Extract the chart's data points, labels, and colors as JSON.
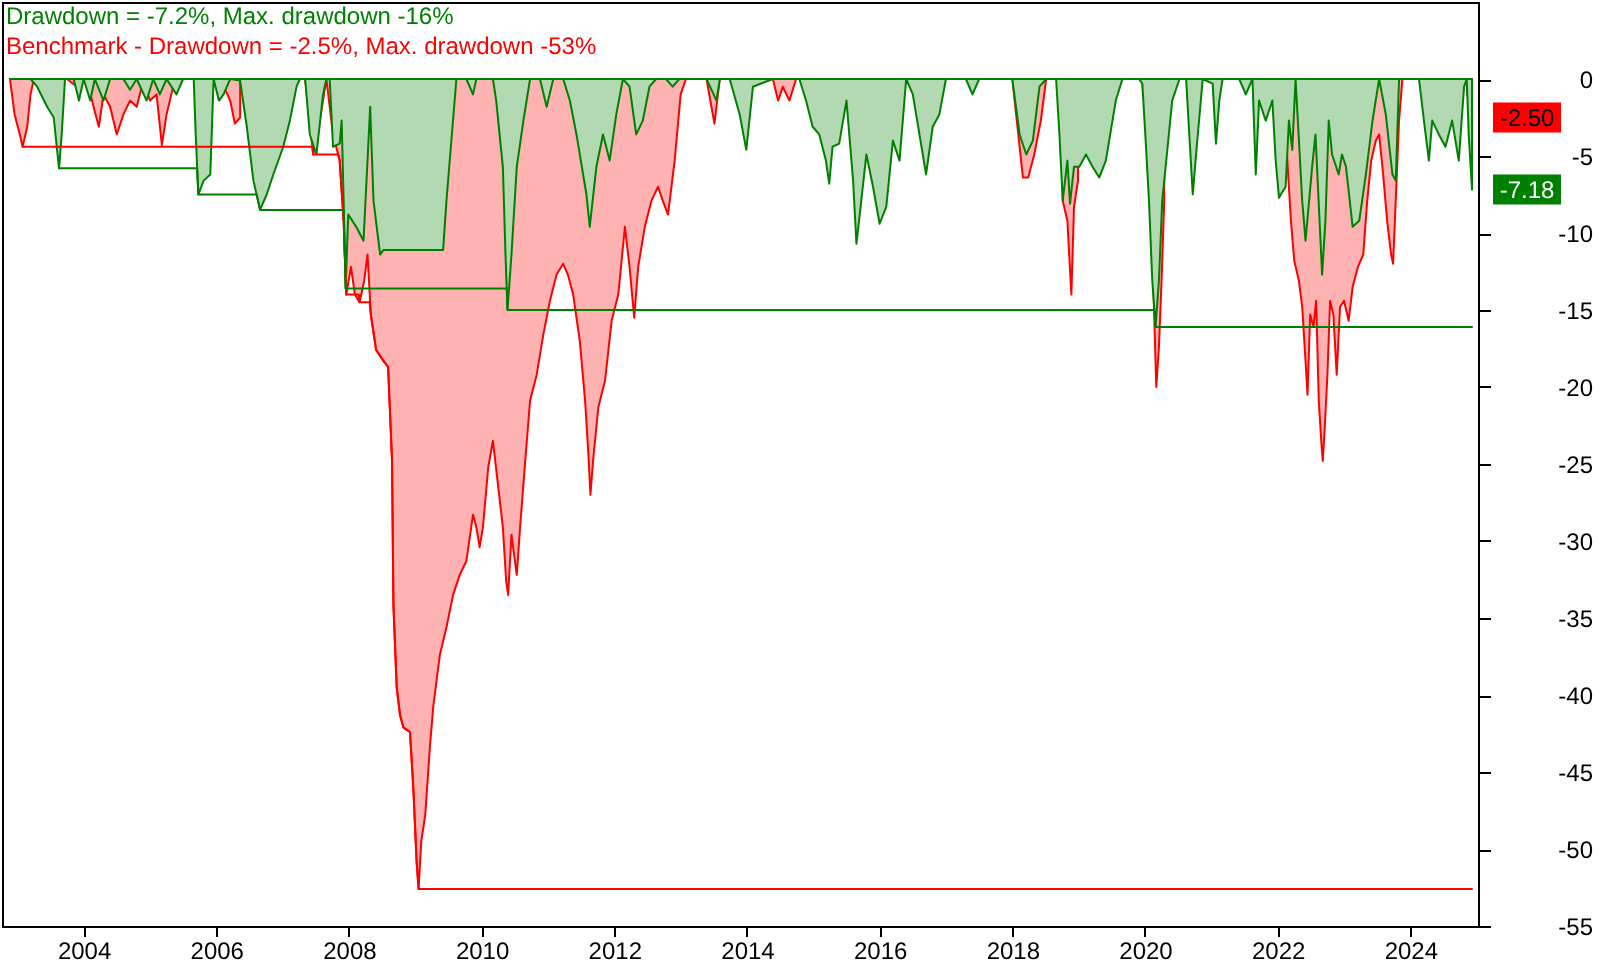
{
  "chart_data": {
    "type": "area",
    "legend": "top left",
    "xlim": [
      2002.77,
      2025.02
    ],
    "xticks": [
      2004,
      2006,
      2008,
      2010,
      2012,
      2014,
      2016,
      2018,
      2020,
      2022,
      2024
    ],
    "ylim": [
      -55,
      5
    ],
    "yticks": [
      0,
      -5,
      -10,
      -15,
      -20,
      -25,
      -30,
      -35,
      -40,
      -45,
      -50,
      -55
    ],
    "series": [
      {
        "name": "Benchmark - Drawdown = -2.5%, Max. drawdown -53%",
        "color": "#ff0000",
        "x": [
          2002.89,
          2002.96,
          2003.05,
          2003.08,
          2003.15,
          2003.2,
          2003.25,
          2003.45,
          2003.75,
          2003.9,
          2004.05,
          2004.15,
          2004.23,
          2004.3,
          2004.4,
          2004.5,
          2004.6,
          2004.7,
          2004.8,
          2004.9,
          2005.0,
          2005.1,
          2005.18,
          2005.25,
          2005.35,
          2005.45,
          2005.66,
          2005.8,
          2006.06,
          2006.21,
          2006.28,
          2006.36,
          2006.8,
          2007.34,
          2007.46,
          2007.56,
          2007.66,
          2007.76,
          2007.86,
          2007.92,
          2007.96,
          2008.03,
          2008.09,
          2008.16,
          2008.23,
          2008.28,
          2008.33,
          2008.41,
          2008.52,
          2008.59,
          2008.65,
          2008.67,
          2008.72,
          2008.77,
          2008.82,
          2008.92,
          2008.97,
          2009.02,
          2009.05,
          2009.09,
          2009.15,
          2009.22,
          2009.27,
          2009.37,
          2009.47,
          2009.57,
          2009.67,
          2009.77,
          2009.87,
          2009.92,
          2009.97,
          2010.02,
          2010.1,
          2010.17,
          2010.24,
          2010.32,
          2010.37,
          2010.4,
          2010.45,
          2010.53,
          2010.58,
          2010.65,
          2010.73,
          2010.83,
          2010.93,
          2011.03,
          2011.13,
          2011.23,
          2011.3,
          2011.38,
          2011.48,
          2011.56,
          2011.61,
          2011.64,
          2011.68,
          2011.76,
          2011.86,
          2011.96,
          2012.06,
          2012.16,
          2012.23,
          2012.3,
          2012.36,
          2012.46,
          2012.56,
          2012.66,
          2012.73,
          2012.81,
          2012.91,
          2013.0,
          2013.08,
          2013.39,
          2013.51,
          2013.59,
          2013.85,
          2014.39,
          2014.47,
          2014.54,
          2014.64,
          2014.74,
          2016.0,
          2018.0,
          2018.09,
          2018.16,
          2018.24,
          2018.33,
          2018.43,
          2018.51,
          2018.6,
          2018.76,
          2018.83,
          2018.89,
          2018.93,
          2018.99,
          2019.5,
          2019.96,
          2020.04,
          2020.09,
          2020.13,
          2020.17,
          2020.21,
          2020.25,
          2020.29,
          2021.0,
          2022.02,
          2022.07,
          2022.14,
          2022.2,
          2022.25,
          2022.32,
          2022.37,
          2022.42,
          2022.45,
          2022.49,
          2022.54,
          2022.58,
          2022.62,
          2022.66,
          2022.68,
          2022.71,
          2022.75,
          2022.79,
          2022.84,
          2022.89,
          2022.94,
          2023.0,
          2023.07,
          2023.13,
          2023.21,
          2023.29,
          2023.35,
          2023.41,
          2023.48,
          2023.53,
          2023.59,
          2023.65,
          2023.71,
          2023.74,
          2023.78,
          2023.83,
          2023.88,
          2024.3,
          2024.78,
          2024.81,
          2024.86,
          2024.93
        ],
        "values": [
          0,
          -2.3,
          -3.8,
          -4.4,
          -3.1,
          -1.0,
          0,
          null,
          0,
          -0.5,
          0,
          -1.8,
          -3.1,
          -1.0,
          -1.8,
          -3.6,
          -2.3,
          -1.4,
          -1.8,
          -0.1,
          -1.4,
          -1.0,
          -4.3,
          -2.3,
          -0.5,
          0,
          0,
          null,
          0,
          -1.4,
          -2.9,
          -2.5,
          null,
          0,
          -4.9,
          -2.7,
          0,
          -3.6,
          -5.3,
          -9.2,
          -14.0,
          -12.2,
          -14.0,
          -14.5,
          -13.1,
          -11.4,
          -15.3,
          -17.6,
          -18.3,
          -18.7,
          -24.8,
          -34.1,
          -39.5,
          -41.3,
          -42.1,
          -42.4,
          -46.0,
          -50.8,
          -52.6,
          -49.5,
          -47.8,
          -43.4,
          -40.8,
          -37.4,
          -35.6,
          -33.5,
          -32.2,
          -31.3,
          -28.3,
          -29.1,
          -30.4,
          -29.1,
          -25.2,
          -23.5,
          -26.1,
          -29.1,
          -32.6,
          -33.5,
          -29.6,
          -32.2,
          -29.1,
          -25.2,
          -20.9,
          -19.2,
          -16.6,
          -14.4,
          -12.7,
          -12.0,
          -12.7,
          -14.0,
          -17.0,
          -20.9,
          -24.4,
          -27.0,
          -24.8,
          -21.3,
          -19.6,
          -15.7,
          -14.0,
          -9.6,
          -12.2,
          -15.5,
          -12.2,
          -9.6,
          -7.9,
          -7.0,
          -7.9,
          -8.8,
          -5.3,
          -1.0,
          0,
          0,
          -2.9,
          0,
          null,
          0,
          -1.4,
          -0.5,
          -1.4,
          0,
          null,
          0,
          -3.6,
          -6.4,
          -6.4,
          -4.9,
          -2.7,
          0,
          null,
          -7.9,
          -9.2,
          -14.0,
          -8.3,
          -6.6,
          null,
          -0.3,
          -3.6,
          -9.6,
          -14.0,
          -20.0,
          -17.4,
          -13.1,
          -7.9,
          null,
          -7.7,
          -7.2,
          -4.9,
          -9.2,
          -11.8,
          -13.1,
          -14.8,
          -18.3,
          -20.5,
          -15.3,
          -16.1,
          -14.4,
          -20.9,
          -23.7,
          -24.8,
          -22.6,
          -19.2,
          -14.4,
          -15.3,
          -19.2,
          -14.8,
          -14.4,
          -15.7,
          -13.5,
          -12.2,
          -11.4,
          -7.9,
          -5.3,
          -4.0,
          -3.6,
          -6.2,
          -9.2,
          -11.4,
          -12.0,
          -7.9,
          -2.7,
          0,
          null,
          null,
          null,
          -1.0,
          -2.5
        ],
        "value_labels": [
          null,
          null,
          null,
          null,
          null,
          null,
          null,
          null,
          null,
          null,
          null,
          null,
          null,
          null,
          null,
          null,
          null,
          null,
          null,
          null,
          null,
          null,
          null,
          null,
          null,
          null,
          null,
          null,
          null,
          null,
          null,
          null,
          null,
          null,
          null,
          null,
          null,
          null,
          null,
          null,
          null,
          null,
          null,
          null,
          null,
          null,
          null,
          null,
          null,
          null,
          null,
          null,
          null,
          null,
          null,
          null,
          null,
          null,
          null,
          null,
          null,
          null,
          null,
          null,
          null,
          null,
          null,
          null,
          null,
          null,
          null,
          null,
          null,
          null,
          null,
          null,
          null,
          null,
          null,
          null,
          null,
          null,
          null,
          null,
          null,
          null,
          null,
          null,
          null,
          null,
          null,
          null,
          null,
          null,
          null,
          null,
          null,
          null,
          null,
          null,
          null,
          null,
          null,
          null,
          null,
          null,
          null,
          null,
          null,
          null,
          null,
          null,
          null,
          null,
          null,
          null,
          null,
          null,
          null,
          null,
          null,
          null,
          null,
          null,
          null,
          null,
          null,
          null,
          null,
          null,
          null,
          null,
          null,
          null,
          null,
          null,
          null,
          null,
          null,
          null,
          null,
          null,
          null,
          null,
          null,
          null,
          null,
          null,
          null,
          null,
          null,
          null,
          null,
          null,
          null,
          null,
          null,
          null,
          null,
          null,
          null,
          null,
          null,
          null,
          null,
          null,
          null,
          null,
          null,
          null,
          null,
          null,
          null,
          null,
          null,
          null,
          null,
          null,
          null,
          null,
          null,
          null,
          null,
          null,
          null,
          "-2.50"
        ]
      },
      {
        "name": "Drawdown = -7.2%, Max. drawdown -16%",
        "color": "#008000",
        "x": [
          2002.89,
          2003.2,
          2003.3,
          2003.45,
          2003.55,
          2003.6,
          2003.63,
          2003.67,
          2003.72,
          2003.85,
          2003.93,
          2004.0,
          2004.1,
          2004.17,
          2004.3,
          2004.4,
          2004.6,
          2004.7,
          2004.8,
          2004.95,
          2005.05,
          2005.15,
          2005.25,
          2005.4,
          2005.5,
          2005.66,
          2005.69,
          2005.73,
          2005.81,
          2005.91,
          2005.96,
          2006.04,
          2006.11,
          2006.21,
          2006.36,
          2006.46,
          2006.56,
          2006.66,
          2006.76,
          2006.86,
          2007.01,
          2007.11,
          2007.21,
          2007.26,
          2007.34,
          2007.41,
          2007.51,
          2007.61,
          2007.66,
          2007.71,
          2007.76,
          2007.86,
          2007.89,
          2007.92,
          2007.95,
          2007.99,
          2008.11,
          2008.22,
          2008.32,
          2008.37,
          2008.47,
          2008.52,
          2009.42,
          2009.47,
          2009.62,
          2009.77,
          2009.87,
          2009.92,
          2010.17,
          2010.22,
          2010.32,
          2010.36,
          2010.39,
          2010.45,
          2010.53,
          2010.63,
          2010.73,
          2010.88,
          2010.98,
          2011.08,
          2011.23,
          2011.33,
          2011.43,
          2011.58,
          2011.63,
          2011.73,
          2011.83,
          2011.93,
          2012.03,
          2012.13,
          2012.23,
          2012.33,
          2012.43,
          2012.53,
          2012.63,
          2012.78,
          2012.88,
          2012.98,
          2013.39,
          2013.54,
          2013.59,
          2013.74,
          2013.89,
          2013.99,
          2014.09,
          2014.39,
          2014.64,
          2014.79,
          2014.89,
          2014.99,
          2015.09,
          2015.19,
          2015.24,
          2015.29,
          2015.39,
          2015.5,
          2015.6,
          2015.65,
          2015.7,
          2015.8,
          2015.9,
          2016.0,
          2016.1,
          2016.2,
          2016.3,
          2016.4,
          2016.5,
          2016.6,
          2016.7,
          2016.8,
          2016.9,
          2017.0,
          2017.3,
          2017.4,
          2017.5,
          2018.0,
          2018.11,
          2018.21,
          2018.31,
          2018.41,
          2018.51,
          2018.66,
          2018.71,
          2018.76,
          2018.83,
          2018.87,
          2018.93,
          2019.01,
          2019.11,
          2019.21,
          2019.31,
          2019.41,
          2019.56,
          2019.66,
          2019.91,
          2019.96,
          2020.01,
          2020.06,
          2020.11,
          2020.16,
          2020.21,
          2020.26,
          2020.36,
          2020.41,
          2020.52,
          2020.62,
          2020.72,
          2020.77,
          2020.87,
          2021.02,
          2021.07,
          2021.12,
          2021.17,
          2021.42,
          2021.52,
          2021.62,
          2021.67,
          2021.72,
          2021.82,
          2021.92,
          2021.97,
          2022.02,
          2022.12,
          2022.17,
          2022.22,
          2022.27,
          2022.37,
          2022.42,
          2022.52,
          2022.57,
          2022.67,
          2022.72,
          2022.77,
          2022.82,
          2022.92,
          2022.97,
          2023.03,
          2023.13,
          2023.23,
          2023.33,
          2023.43,
          2023.53,
          2023.63,
          2023.73,
          2023.78,
          2023.83,
          2024.13,
          2024.23,
          2024.28,
          2024.33,
          2024.43,
          2024.53,
          2024.63,
          2024.73,
          2024.81,
          2024.85,
          2024.88,
          2024.93
        ],
        "values": [
          0,
          0,
          -0.5,
          -1.8,
          -2.5,
          -4.6,
          -5.8,
          -3.6,
          0,
          0,
          -1.4,
          0,
          -1.4,
          0,
          -1.4,
          0,
          0,
          -0.7,
          0,
          -1.4,
          0,
          -1.0,
          0,
          -1.0,
          0,
          0,
          -3.6,
          -7.5,
          -6.6,
          -6.2,
          0,
          -1.4,
          -1.0,
          0,
          -0.1,
          -3.1,
          -6.6,
          -8.5,
          -7.5,
          -6.2,
          -4.4,
          -2.7,
          -0.5,
          0,
          0,
          -3.6,
          -4.9,
          -1.0,
          0,
          0,
          -4.4,
          -4.2,
          -2.7,
          -7.9,
          -13.6,
          -8.8,
          -9.6,
          -10.5,
          -1.8,
          -7.9,
          -11.4,
          -11.1,
          -11.1,
          -7.9,
          0,
          0,
          -1.0,
          0,
          0,
          -1.4,
          -5.7,
          -11.4,
          -15.0,
          -11.4,
          -5.7,
          -2.7,
          0,
          0,
          -1.8,
          0,
          0,
          -1.4,
          -3.6,
          -7.5,
          -9.6,
          -5.7,
          -3.6,
          -5.3,
          -2.3,
          0,
          -0.5,
          -3.6,
          -2.7,
          -0.5,
          0,
          0,
          -0.5,
          0,
          0,
          -1.4,
          0,
          0,
          -2.3,
          -4.6,
          -0.5,
          0,
          0,
          0,
          -1.4,
          -3.1,
          -3.6,
          -5.3,
          -6.8,
          -4.4,
          -4.2,
          -1.4,
          -6.6,
          -10.7,
          -8.8,
          -4.9,
          -7.0,
          -9.4,
          -8.3,
          -4.0,
          -5.3,
          0,
          -1.0,
          -3.6,
          -6.2,
          -3.1,
          -2.3,
          0,
          0,
          -1.0,
          0,
          0,
          -3.6,
          -4.9,
          -4.0,
          -0.5,
          0,
          0,
          -3.6,
          -7.9,
          -5.3,
          -8.1,
          -5.7,
          -5.7,
          -4.9,
          -5.7,
          -6.4,
          -5.3,
          -1.4,
          0,
          0,
          -0.3,
          -4.0,
          -7.9,
          -13.1,
          -16.1,
          -13.1,
          -7.9,
          -3.6,
          -1.4,
          0,
          0,
          -7.5,
          -4.9,
          0,
          -0.3,
          -4.2,
          -1.4,
          0,
          0,
          -1.0,
          0,
          -6.2,
          -1.4,
          -2.7,
          -1.4,
          -5.3,
          -7.7,
          -7.0,
          -2.7,
          -4.6,
          0,
          -7.9,
          -10.5,
          -5.7,
          -3.6,
          -12.7,
          -9.2,
          -2.7,
          -4.9,
          -6.2,
          -4.9,
          -5.7,
          -9.6,
          -9.2,
          -6.2,
          -2.7,
          0,
          -2.3,
          -6.2,
          -6.6,
          0,
          0,
          -3.6,
          -5.3,
          -2.7,
          -3.6,
          -4.4,
          -2.7,
          -5.3,
          -0.5,
          0,
          -3.6,
          -7.18
        ],
        "value_labels": [
          null,
          null,
          null,
          null,
          null,
          null,
          null,
          null,
          null,
          null,
          null,
          null,
          null,
          null,
          null,
          null,
          null,
          null,
          null,
          null,
          null,
          null,
          null,
          null,
          null,
          null,
          null,
          null,
          null,
          null,
          null,
          null,
          null,
          null,
          null,
          null,
          null,
          null,
          null,
          null,
          null,
          null,
          null,
          null,
          null,
          null,
          null,
          null,
          null,
          null,
          null,
          null,
          null,
          null,
          null,
          null,
          null,
          null,
          null,
          null,
          null,
          null,
          null,
          null,
          null,
          null,
          null,
          null,
          null,
          null,
          null,
          null,
          null,
          null,
          null,
          null,
          null,
          null,
          null,
          null,
          null,
          null,
          null,
          null,
          null,
          null,
          null,
          null,
          null,
          null,
          null,
          null,
          null,
          null,
          null,
          null,
          null,
          null,
          null,
          null,
          null,
          null,
          null,
          null,
          null,
          null,
          null,
          null,
          null,
          null,
          null,
          null,
          null,
          null,
          null,
          null,
          null,
          null,
          null,
          null,
          null,
          null,
          null,
          null,
          null,
          null,
          null,
          null,
          null,
          null,
          null,
          null,
          null,
          null,
          null,
          null,
          null,
          null,
          null,
          null,
          null,
          null,
          null,
          null,
          null,
          null,
          null,
          null,
          null,
          null,
          null,
          null,
          null,
          null,
          null,
          null,
          null,
          null,
          null,
          null,
          null,
          null,
          null,
          null,
          null,
          null,
          null,
          null,
          null,
          null,
          null,
          null,
          null,
          null,
          null,
          null,
          null,
          null,
          null,
          null,
          null,
          null,
          null,
          null,
          null,
          null,
          null,
          null,
          null,
          null,
          null,
          null,
          null,
          null,
          null,
          null,
          null,
          null,
          null,
          null,
          null,
          null,
          null,
          null,
          null,
          null,
          null,
          null,
          null,
          null,
          null,
          null,
          null,
          null,
          null,
          null,
          null,
          "-7.18"
        ]
      },
      {
        "type": "line",
        "color": "#ff0000",
        "x": [
          2003.08,
          2007.45,
          2007.46,
          2007.84,
          2007.86,
          2007.92,
          2007.96,
          2008.15,
          2008.16,
          2008.31,
          2008.33,
          2008.41,
          2008.52,
          2008.59,
          2008.65,
          2008.67,
          2008.72,
          2008.77,
          2008.82,
          2008.92,
          2008.97,
          2009.02,
          2009.05,
          2024.93
        ],
        "values": [
          -4.4,
          -4.4,
          -4.9,
          -4.9,
          -5.3,
          -9.2,
          -14.0,
          -14.0,
          -14.5,
          -14.5,
          -15.3,
          -17.6,
          -18.3,
          -18.7,
          -24.8,
          -34.1,
          -39.5,
          -41.3,
          -42.1,
          -42.4,
          -46.0,
          -50.8,
          -52.6,
          -52.6
        ]
      },
      {
        "type": "line",
        "color": "#008000",
        "x": [
          2003.63,
          2005.71,
          2005.73,
          2006.61,
          2006.66,
          2007.92,
          2007.95,
          2010.38,
          2010.39,
          2020.14,
          2020.16,
          2024.93
        ],
        "values": [
          -5.8,
          -5.8,
          -7.5,
          -7.5,
          -8.5,
          -8.5,
          -13.6,
          -13.6,
          -15.0,
          -15.0,
          -16.1,
          -16.1
        ]
      }
    ]
  }
}
